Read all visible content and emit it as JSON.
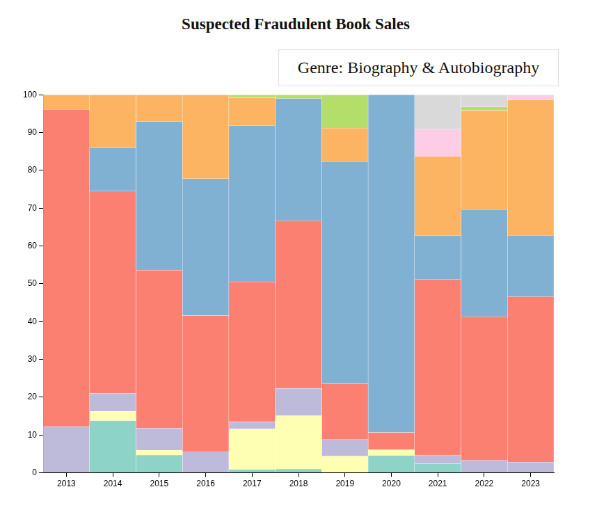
{
  "chart_data": {
    "type": "bar",
    "title": "Suspected Fraudulent Book Sales",
    "subtitle": "Genre: Biography & Autobiography",
    "categories": [
      "2013",
      "2014",
      "2015",
      "2016",
      "2017",
      "2018",
      "2019",
      "2020",
      "2021",
      "2022",
      "2023"
    ],
    "series": [
      {
        "color": "#8dd3c7",
        "values": [
          0,
          13.8,
          4.7,
          0,
          0.9,
          1,
          0,
          4.6,
          2.4,
          0,
          0
        ]
      },
      {
        "color": "#ffffb3",
        "values": [
          0,
          2.5,
          1.3,
          0,
          10.7,
          14.1,
          4.4,
          1.5,
          0,
          0,
          0
        ]
      },
      {
        "color": "#bebada",
        "values": [
          12.2,
          4.7,
          5.8,
          5.5,
          1.9,
          7.2,
          4.4,
          0,
          2.3,
          3.3,
          2.8
        ]
      },
      {
        "color": "#fb8072",
        "values": [
          83.8,
          53.5,
          41.8,
          36.1,
          37,
          44.4,
          14.8,
          4.6,
          46.5,
          38,
          43.8
        ]
      },
      {
        "color": "#80b1d3",
        "values": [
          0,
          11.5,
          39.3,
          36.2,
          41.4,
          32.3,
          58.6,
          89.3,
          11.6,
          28.2,
          16.1
        ]
      },
      {
        "color": "#fdb462",
        "values": [
          4,
          14,
          7.1,
          22.2,
          7.3,
          0,
          9,
          0,
          20.9,
          26.4,
          35.9
        ]
      },
      {
        "color": "#b3de69",
        "values": [
          0,
          0,
          0,
          0,
          0.8,
          1,
          8.8,
          0,
          0,
          0.9,
          0
        ]
      },
      {
        "color": "#fccde5",
        "values": [
          0,
          0,
          0,
          0,
          0,
          0,
          0,
          0,
          7.2,
          0,
          1.4
        ]
      },
      {
        "color": "#d9d9d9",
        "values": [
          0,
          0,
          0,
          0,
          0,
          0,
          0,
          0,
          9.1,
          3.2,
          0
        ]
      }
    ],
    "ylim": [
      0,
      100
    ],
    "yticks": [
      0,
      10,
      20,
      30,
      40,
      50,
      60,
      70,
      80,
      90,
      100
    ],
    "stacked": true,
    "grid": false
  }
}
